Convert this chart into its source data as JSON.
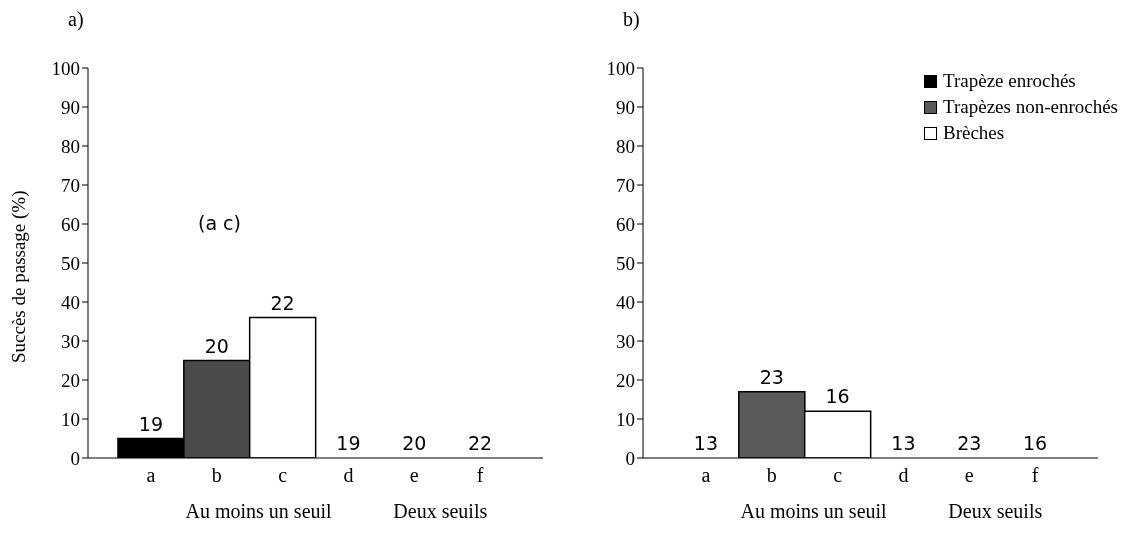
{
  "chart_data": [
    {
      "type": "bar",
      "title": "a)",
      "ylabel": "Succès de passage (%)",
      "categories": [
        "a",
        "b",
        "c",
        "d",
        "e",
        "f"
      ],
      "stacked": true,
      "ylim": [
        0,
        100
      ],
      "yticks": [
        0,
        10,
        20,
        30,
        40,
        50,
        60,
        70,
        80,
        90,
        100
      ],
      "grid": false,
      "legend": false,
      "series": [
        {
          "color": "#000000",
          "values": [
            5,
            null,
            null,
            0,
            null,
            null
          ]
        },
        {
          "color": "#4a4a4a",
          "values": [
            null,
            25,
            null,
            null,
            0,
            null
          ]
        },
        {
          "color": "#ffffff",
          "values": [
            null,
            null,
            36,
            null,
            null,
            0
          ]
        }
      ],
      "annotations": [
        "(a c)",
        {
          "text": "19",
          "x": "a",
          "y": 5
        },
        {
          "text": "20",
          "x": "b",
          "y": 25
        },
        {
          "text": "22",
          "x": "c",
          "y": 36
        },
        {
          "text": "19",
          "x": "d",
          "y": 0
        },
        {
          "text": "20",
          "x": "e",
          "y": 0
        },
        {
          "text": "22",
          "x": "f",
          "y": 0
        },
        "Au moins un seuil",
        "Deux seuils"
      ]
    },
    {
      "type": "bar",
      "title": "b)",
      "categories": [
        "a",
        "b",
        "c",
        "d",
        "e",
        "f"
      ],
      "stacked": true,
      "ylim": [
        0,
        100
      ],
      "yticks": [
        0,
        10,
        20,
        30,
        40,
        50,
        60,
        70,
        80,
        90,
        100
      ],
      "grid": false,
      "legend": "top right",
      "series": [
        {
          "name": "Trapèze enrochés",
          "color": "#000000",
          "values": [
            0,
            null,
            null,
            0,
            null,
            null
          ]
        },
        {
          "name": "Trapèzes non-enrochés",
          "color": "#5a5a5a",
          "values": [
            null,
            17,
            null,
            null,
            0,
            null
          ]
        },
        {
          "name": "Brèches",
          "color": "#ffffff",
          "values": [
            null,
            null,
            12,
            null,
            null,
            0
          ]
        }
      ],
      "annotations": [
        {
          "text": "13",
          "x": "a",
          "y": 0
        },
        {
          "text": "23",
          "x": "b",
          "y": 17
        },
        {
          "text": "16",
          "x": "c",
          "y": 12
        },
        {
          "text": "13",
          "x": "d",
          "y": 0
        },
        {
          "text": "23",
          "x": "e",
          "y": 0
        },
        {
          "text": "16",
          "x": "f",
          "y": 0
        },
        "Au moins un seuil",
        "Deux seuils"
      ]
    }
  ]
}
